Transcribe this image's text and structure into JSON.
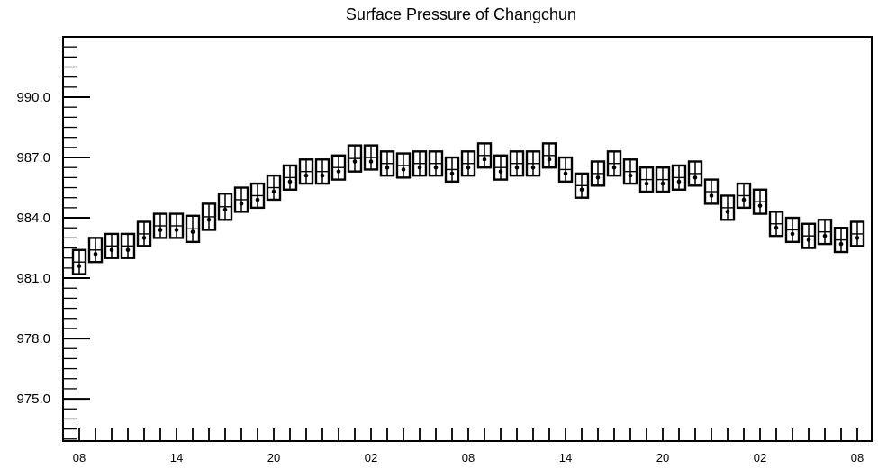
{
  "chart_data": {
    "type": "box",
    "title": "Surface Pressure of Changchun",
    "xlabel": "",
    "ylabel": "",
    "ylim": [
      972.9,
      993.0
    ],
    "y_ticks": [
      "975.0",
      "978.0",
      "981.0",
      "984.0",
      "987.0",
      "990.0"
    ],
    "x_tick_labels": [
      "08",
      "14",
      "20",
      "02",
      "08",
      "14",
      "20",
      "02",
      "08"
    ],
    "grid": false,
    "series": [
      {
        "values": [
          981.6,
          982.2,
          982.4,
          982.4,
          983.0,
          983.4,
          983.4,
          983.3,
          983.9,
          984.4,
          984.7,
          984.9,
          985.3,
          985.8,
          986.1,
          986.1,
          986.3,
          986.8,
          986.8,
          986.5,
          986.4,
          986.5,
          986.5,
          986.2,
          986.5,
          986.9,
          986.3,
          986.5,
          986.5,
          986.9,
          986.2,
          985.4,
          986.0,
          986.5,
          986.1,
          985.7,
          985.7,
          985.8,
          986.0,
          985.1,
          984.3,
          984.9,
          984.6,
          983.5,
          983.2,
          982.9,
          983.1,
          982.7,
          983.0
        ],
        "box_low": [
          981.2,
          981.8,
          982.0,
          982.0,
          982.6,
          983.0,
          983.0,
          982.8,
          983.4,
          983.9,
          984.3,
          984.5,
          984.9,
          985.4,
          985.7,
          985.7,
          985.9,
          986.3,
          986.4,
          986.1,
          986.0,
          986.1,
          986.1,
          985.8,
          986.1,
          986.5,
          985.9,
          986.1,
          986.1,
          986.5,
          985.8,
          985.0,
          985.6,
          986.1,
          985.7,
          985.3,
          985.3,
          985.4,
          985.6,
          984.7,
          983.9,
          984.5,
          984.2,
          983.1,
          982.8,
          982.5,
          982.7,
          982.3,
          982.6
        ],
        "box_high": [
          982.4,
          983.0,
          983.2,
          983.2,
          983.8,
          984.2,
          984.2,
          984.1,
          984.7,
          985.2,
          985.5,
          985.7,
          986.1,
          986.6,
          986.9,
          986.9,
          987.1,
          987.6,
          987.6,
          987.3,
          987.2,
          987.3,
          987.3,
          987.0,
          987.3,
          987.7,
          987.1,
          987.3,
          987.3,
          987.7,
          987.0,
          986.2,
          986.8,
          987.3,
          986.9,
          986.5,
          986.5,
          986.6,
          986.8,
          985.9,
          985.1,
          985.7,
          985.4,
          984.3,
          984.0,
          983.7,
          983.9,
          983.5,
          983.8
        ]
      }
    ]
  }
}
